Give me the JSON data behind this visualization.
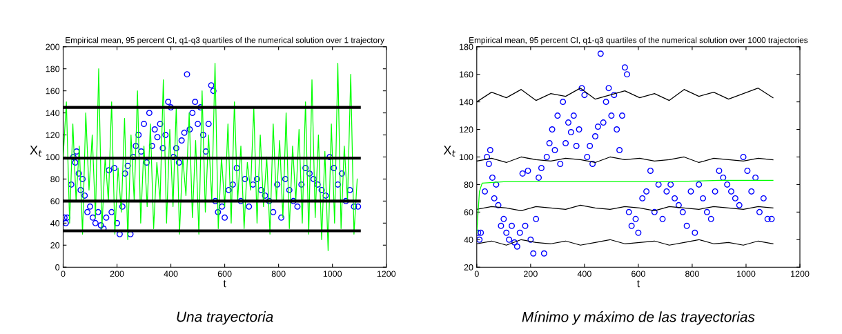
{
  "chart_data": [
    {
      "type": "line",
      "title": "Empirical mean, 95 percent CI, q1-q3 quartiles of the numerical solution over 1 trajectory",
      "xlabel": "t",
      "ylabel": "X$_{t}$",
      "annotations": [
        "Una trayectoria"
      ],
      "xlim": [
        0,
        1200
      ],
      "xticks": [
        0,
        200,
        400,
        600,
        800,
        1000,
        1200
      ],
      "ylim": [
        0,
        200
      ],
      "yticks": [
        0,
        20,
        40,
        60,
        80,
        100,
        120,
        140,
        160,
        180,
        200
      ],
      "grid": false,
      "legend": false,
      "series": [
        {
          "type": "scatter",
          "color": "#0000ff",
          "marker": "circle",
          "x": [
            5,
            10,
            15,
            30,
            38,
            45,
            50,
            58,
            65,
            72,
            80,
            90,
            100,
            110,
            120,
            130,
            140,
            150,
            160,
            170,
            180,
            190,
            200,
            210,
            220,
            230,
            240,
            250,
            260,
            270,
            280,
            290,
            300,
            310,
            320,
            330,
            340,
            350,
            360,
            370,
            380,
            390,
            400,
            410,
            420,
            430,
            440,
            450,
            460,
            470,
            480,
            490,
            500,
            510,
            520,
            530,
            540,
            550,
            558,
            565,
            575,
            590,
            600,
            615,
            630,
            645,
            660,
            675,
            690,
            705,
            720,
            735,
            750,
            765,
            780,
            795,
            810,
            825,
            840,
            855,
            870,
            885,
            900,
            915,
            930,
            945,
            960,
            975,
            990,
            1005,
            1020,
            1035,
            1050,
            1065,
            1080,
            1095
          ],
          "values": [
            45,
            40,
            45,
            75,
            100,
            95,
            105,
            85,
            70,
            80,
            65,
            50,
            55,
            45,
            40,
            50,
            38,
            35,
            45,
            88,
            50,
            90,
            40,
            30,
            55,
            85,
            92,
            30,
            100,
            110,
            120,
            105,
            130,
            95,
            140,
            110,
            125,
            118,
            130,
            108,
            120,
            150,
            145,
            100,
            108,
            95,
            115,
            122,
            175,
            125,
            140,
            150,
            130,
            145,
            120,
            105,
            130,
            165,
            160,
            60,
            50,
            55,
            45,
            70,
            75,
            90,
            60,
            80,
            55,
            75,
            80,
            70,
            65,
            60,
            50,
            75,
            45,
            80,
            70,
            60,
            55,
            75,
            90,
            85,
            80,
            75,
            70,
            65,
            100,
            90,
            75,
            85,
            60,
            70,
            55,
            55
          ]
        },
        {
          "color": "#00ff00",
          "x": [
            0,
            12,
            24,
            36,
            48,
            60,
            72,
            84,
            96,
            108,
            120,
            132,
            144,
            156,
            168,
            180,
            192,
            204,
            216,
            228,
            240,
            252,
            264,
            276,
            288,
            300,
            312,
            324,
            336,
            348,
            360,
            372,
            384,
            396,
            408,
            420,
            432,
            444,
            456,
            468,
            480,
            492,
            504,
            516,
            528,
            540,
            552,
            564,
            576,
            588,
            600,
            612,
            624,
            636,
            648,
            660,
            672,
            684,
            696,
            708,
            720,
            732,
            744,
            756,
            768,
            780,
            792,
            804,
            816,
            828,
            840,
            852,
            864,
            876,
            888,
            900,
            912,
            924,
            936,
            948,
            960,
            972,
            984,
            996,
            1008,
            1020,
            1032,
            1044,
            1056,
            1068,
            1080,
            1092
          ],
          "values": [
            100,
            150,
            40,
            130,
            60,
            110,
            30,
            140,
            70,
            120,
            45,
            180,
            35,
            100,
            60,
            150,
            30,
            90,
            50,
            135,
            25,
            120,
            60,
            160,
            40,
            110,
            55,
            130,
            35,
            95,
            60,
            170,
            40,
            125,
            55,
            145,
            30,
            100,
            65,
            140,
            45,
            115,
            30,
            160,
            50,
            120,
            60,
            185,
            35,
            100,
            55,
            130,
            40,
            150,
            60,
            110,
            35,
            95,
            70,
            145,
            40,
            120,
            55,
            100,
            30,
            130,
            60,
            115,
            45,
            140,
            35,
            110,
            60,
            125,
            40,
            150,
            30,
            170,
            45,
            120,
            25,
            105,
            15,
            130,
            40,
            185,
            35,
            110,
            60,
            175,
            30,
            80
          ]
        },
        {
          "color": "#000000",
          "x": [
            0,
            1100
          ],
          "values": [
            145,
            145
          ]
        },
        {
          "color": "#000000",
          "x": [
            0,
            1100
          ],
          "values": [
            99,
            99
          ]
        },
        {
          "color": "#000000",
          "x": [
            0,
            1100
          ],
          "values": [
            60,
            60
          ]
        },
        {
          "color": "#000000",
          "x": [
            0,
            1100
          ],
          "values": [
            33,
            33
          ]
        }
      ]
    },
    {
      "type": "line",
      "title": "Empirical mean, 95 percent CI, q1-q3 quartiles of the numerical solution over 1000 trajectories",
      "xlabel": "t",
      "ylabel": "X$_{t}$",
      "annotations": [
        "Mínimo y máximo de las trayectorias"
      ],
      "xlim": [
        0,
        1200
      ],
      "xticks": [
        0,
        200,
        400,
        600,
        800,
        1000,
        1200
      ],
      "ylim": [
        20,
        180
      ],
      "yticks": [
        20,
        40,
        60,
        80,
        100,
        120,
        140,
        160,
        180
      ],
      "grid": false,
      "legend": false,
      "series": [
        {
          "type": "scatter",
          "color": "#0000ff",
          "marker": "circle",
          "x": [
            5,
            10,
            15,
            30,
            38,
            45,
            50,
            58,
            65,
            72,
            80,
            90,
            100,
            110,
            120,
            130,
            140,
            150,
            160,
            170,
            180,
            190,
            200,
            210,
            220,
            230,
            240,
            250,
            260,
            270,
            280,
            290,
            300,
            310,
            320,
            330,
            340,
            350,
            360,
            370,
            380,
            390,
            400,
            410,
            420,
            430,
            440,
            450,
            460,
            470,
            480,
            490,
            500,
            510,
            520,
            530,
            540,
            550,
            558,
            565,
            575,
            590,
            600,
            615,
            630,
            645,
            660,
            675,
            690,
            705,
            720,
            735,
            750,
            765,
            780,
            795,
            810,
            825,
            840,
            855,
            870,
            885,
            900,
            915,
            930,
            945,
            960,
            975,
            990,
            1005,
            1020,
            1035,
            1050,
            1065,
            1080,
            1095
          ],
          "values": [
            45,
            40,
            45,
            75,
            100,
            95,
            105,
            85,
            70,
            80,
            65,
            50,
            55,
            45,
            40,
            50,
            38,
            35,
            45,
            88,
            50,
            90,
            40,
            30,
            55,
            85,
            92,
            30,
            100,
            110,
            120,
            105,
            130,
            95,
            140,
            110,
            125,
            118,
            130,
            108,
            120,
            150,
            145,
            100,
            108,
            95,
            115,
            122,
            175,
            125,
            140,
            150,
            130,
            145,
            120,
            105,
            130,
            165,
            160,
            60,
            50,
            55,
            45,
            70,
            75,
            90,
            60,
            80,
            55,
            75,
            80,
            70,
            65,
            60,
            50,
            75,
            45,
            80,
            70,
            60,
            55,
            75,
            90,
            85,
            80,
            75,
            70,
            65,
            100,
            90,
            75,
            85,
            60,
            70,
            55,
            55
          ]
        },
        {
          "type": "line",
          "color": "#000000",
          "x": [
            0,
            55,
            110,
            165,
            220,
            275,
            330,
            385,
            440,
            495,
            550,
            605,
            660,
            715,
            770,
            825,
            880,
            935,
            990,
            1045,
            1100
          ],
          "values": [
            140,
            147,
            143,
            149,
            141,
            146,
            144,
            150,
            142,
            145,
            148,
            143,
            146,
            141,
            149,
            144,
            147,
            142,
            146,
            150,
            143
          ]
        },
        {
          "type": "line",
          "color": "#000000",
          "x": [
            0,
            55,
            110,
            165,
            220,
            275,
            330,
            385,
            440,
            495,
            550,
            605,
            660,
            715,
            770,
            825,
            880,
            935,
            990,
            1045,
            1100
          ],
          "values": [
            97,
            99,
            96,
            100,
            98,
            97,
            99,
            98,
            96,
            100,
            98,
            99,
            97,
            98,
            100,
            96,
            99,
            98,
            97,
            99,
            98
          ]
        },
        {
          "type": "line",
          "color": "#000000",
          "x": [
            0,
            55,
            110,
            165,
            220,
            275,
            330,
            385,
            440,
            495,
            550,
            605,
            660,
            715,
            770,
            825,
            880,
            935,
            990,
            1045,
            1100
          ],
          "values": [
            62,
            64,
            63,
            61,
            64,
            63,
            62,
            65,
            63,
            62,
            64,
            63,
            61,
            64,
            63,
            62,
            64,
            63,
            62,
            64,
            63
          ]
        },
        {
          "type": "line",
          "color": "#000000",
          "x": [
            0,
            55,
            110,
            165,
            220,
            275,
            330,
            385,
            440,
            495,
            550,
            605,
            660,
            715,
            770,
            825,
            880,
            935,
            990,
            1045,
            1100
          ],
          "values": [
            37,
            39,
            36,
            40,
            38,
            37,
            39,
            36,
            38,
            40,
            37,
            38,
            39,
            36,
            38,
            40,
            37,
            38,
            36,
            39,
            37
          ]
        },
        {
          "color": "#00ff00",
          "x": [
            0,
            10,
            20,
            100,
            300,
            500,
            700,
            900,
            1100
          ],
          "values": [
            45,
            75,
            81,
            82,
            82,
            82,
            82,
            83,
            83
          ]
        }
      ]
    }
  ]
}
